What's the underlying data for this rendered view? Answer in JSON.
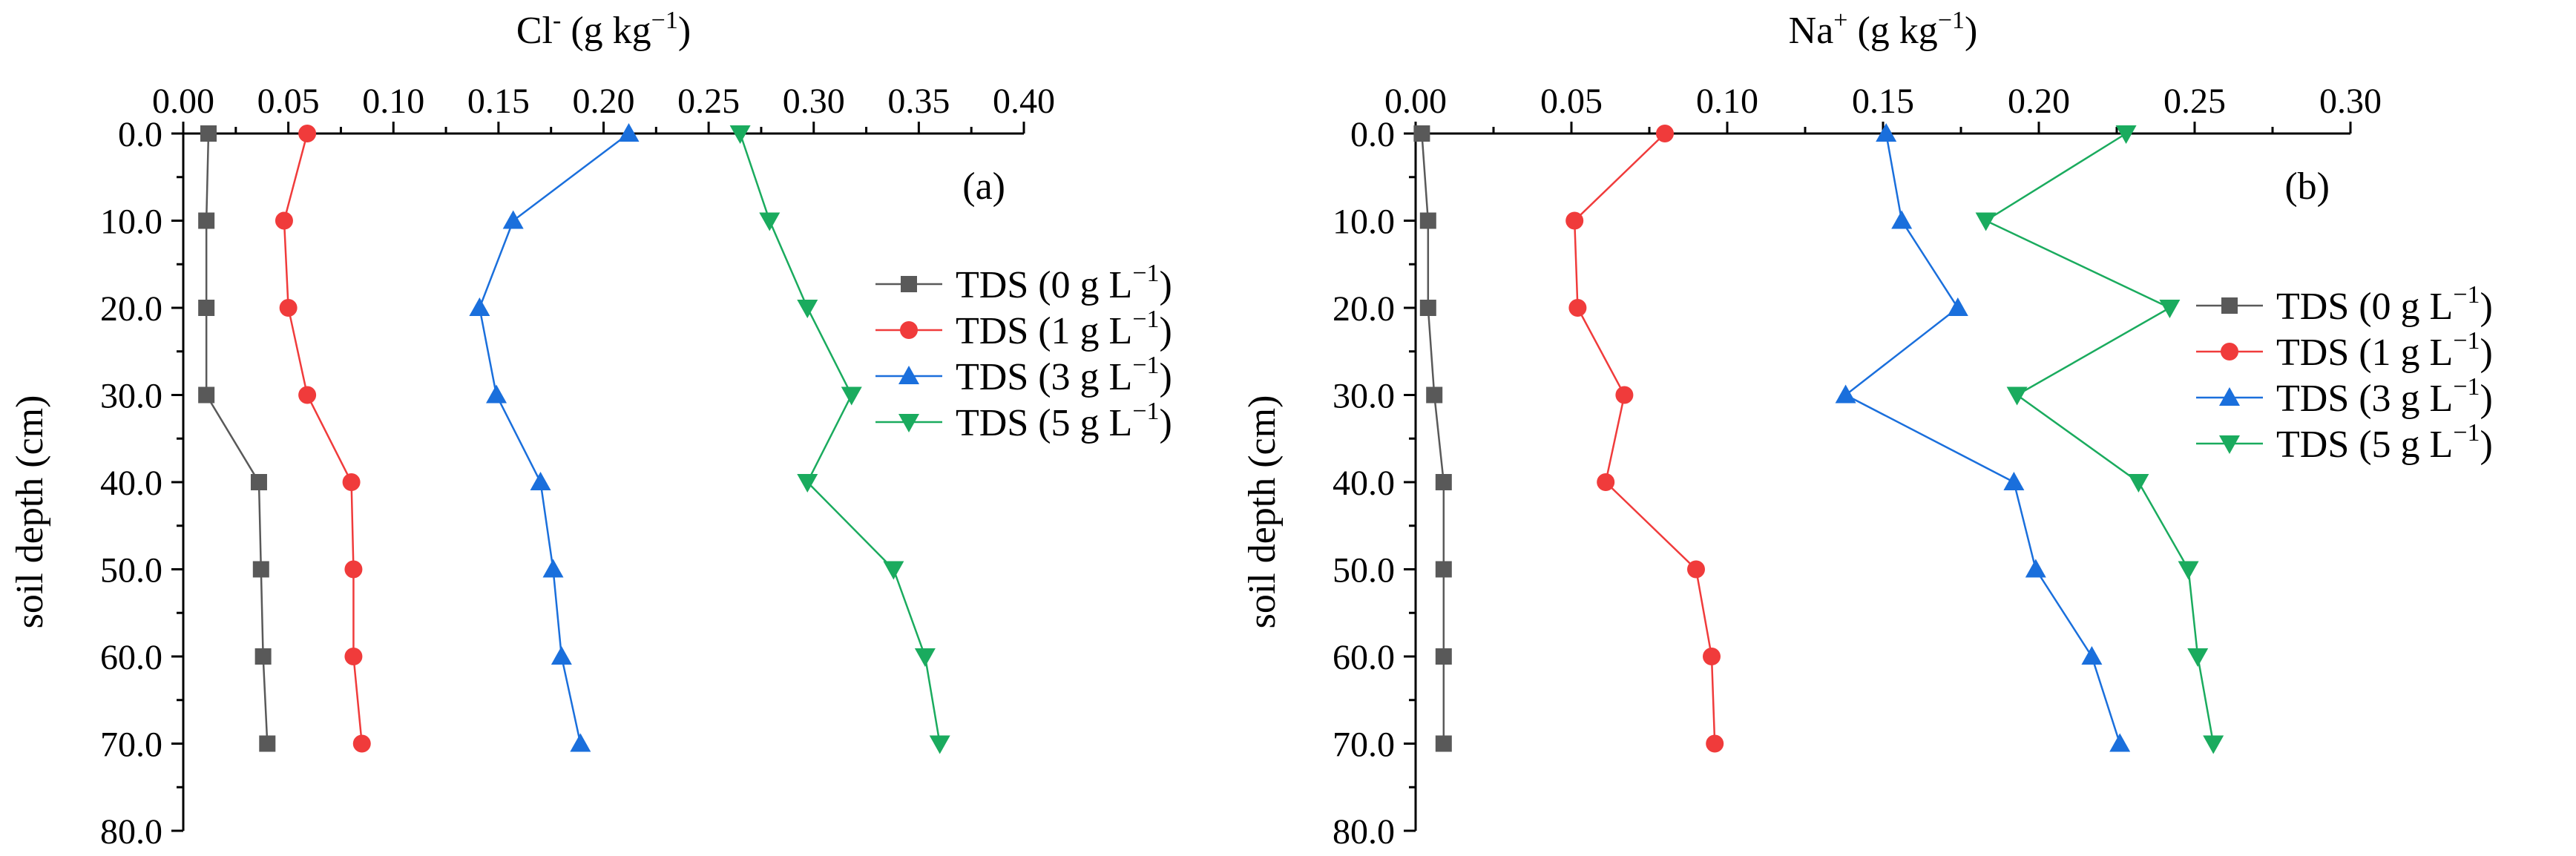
{
  "chart_data": [
    {
      "type": "line",
      "panel_label": "(a)",
      "xlabel": {
        "base": "Cl",
        "sup": "-",
        "unit_pre": " (g kg",
        "unit_sup": "−1",
        "unit_post": ")"
      },
      "ylabel": "soil depth (cm)",
      "xlim": [
        0,
        0.4
      ],
      "ylim": [
        0,
        80
      ],
      "x_ticks": [
        "0.00",
        "0.05",
        "0.10",
        "0.15",
        "0.20",
        "0.25",
        "0.30",
        "0.35",
        "0.40"
      ],
      "y_ticks": [
        "0.0",
        "10.0",
        "20.0",
        "30.0",
        "40.0",
        "50.0",
        "60.0",
        "70.0",
        "80.0"
      ],
      "x_axis_position": "top",
      "y_inverted": true,
      "depth": [
        0,
        10,
        20,
        30,
        40,
        50,
        60,
        70
      ],
      "legend_position": "right",
      "series": [
        {
          "name": "TDS (0 g L",
          "sup": "−1",
          "close": ")",
          "marker": "square",
          "color": "#595959",
          "values": [
            0.012,
            0.011,
            0.011,
            0.011,
            0.036,
            0.037,
            0.038,
            0.04
          ]
        },
        {
          "name": "TDS (1 g L",
          "sup": "−1",
          "close": ")",
          "marker": "circle",
          "color": "#f03b3b",
          "values": [
            0.059,
            0.048,
            0.05,
            0.059,
            0.08,
            0.081,
            0.081,
            0.085
          ]
        },
        {
          "name": "TDS (3 g L",
          "sup": "−1",
          "close": ")",
          "marker": "triangle-up",
          "color": "#1a6fdc",
          "values": [
            0.212,
            0.157,
            0.141,
            0.149,
            0.17,
            0.176,
            0.18,
            0.189
          ]
        },
        {
          "name": "TDS (5 g L",
          "sup": "−1",
          "close": ")",
          "marker": "triangle-down",
          "color": "#1aab5e",
          "values": [
            0.265,
            0.279,
            0.297,
            0.318,
            0.297,
            0.338,
            0.353,
            0.36
          ]
        }
      ]
    },
    {
      "type": "line",
      "panel_label": "(b)",
      "xlabel": {
        "base": "Na",
        "sup": "+",
        "unit_pre": " (g kg",
        "unit_sup": "−1",
        "unit_post": ")"
      },
      "ylabel": "soil depth (cm)",
      "xlim": [
        0,
        0.3
      ],
      "ylim": [
        0,
        80
      ],
      "x_ticks": [
        "0.00",
        "0.05",
        "0.10",
        "0.15",
        "0.20",
        "0.25",
        "0.30"
      ],
      "y_ticks": [
        "0.0",
        "10.0",
        "20.0",
        "30.0",
        "40.0",
        "50.0",
        "60.0",
        "70.0",
        "80.0"
      ],
      "x_axis_position": "top",
      "y_inverted": true,
      "depth": [
        0,
        10,
        20,
        30,
        40,
        50,
        60,
        70
      ],
      "legend_position": "right",
      "series": [
        {
          "name": "TDS (0 g L",
          "sup": "−1",
          "close": ")",
          "marker": "square",
          "color": "#595959",
          "values": [
            0.002,
            0.004,
            0.004,
            0.006,
            0.009,
            0.009,
            0.009,
            0.009
          ]
        },
        {
          "name": "TDS (1 g L",
          "sup": "−1",
          "close": ")",
          "marker": "circle",
          "color": "#f03b3b",
          "values": [
            0.08,
            0.051,
            0.052,
            0.067,
            0.061,
            0.09,
            0.095,
            0.096
          ]
        },
        {
          "name": "TDS (3 g L",
          "sup": "−1",
          "close": ")",
          "marker": "triangle-up",
          "color": "#1a6fdc",
          "values": [
            0.151,
            0.156,
            0.174,
            0.138,
            0.192,
            0.199,
            0.217,
            0.226
          ]
        },
        {
          "name": "TDS (5 g L",
          "sup": "−1",
          "close": ")",
          "marker": "triangle-down",
          "color": "#1aab5e",
          "values": [
            0.228,
            0.183,
            0.242,
            0.193,
            0.232,
            0.248,
            0.251,
            0.256
          ]
        }
      ]
    }
  ]
}
